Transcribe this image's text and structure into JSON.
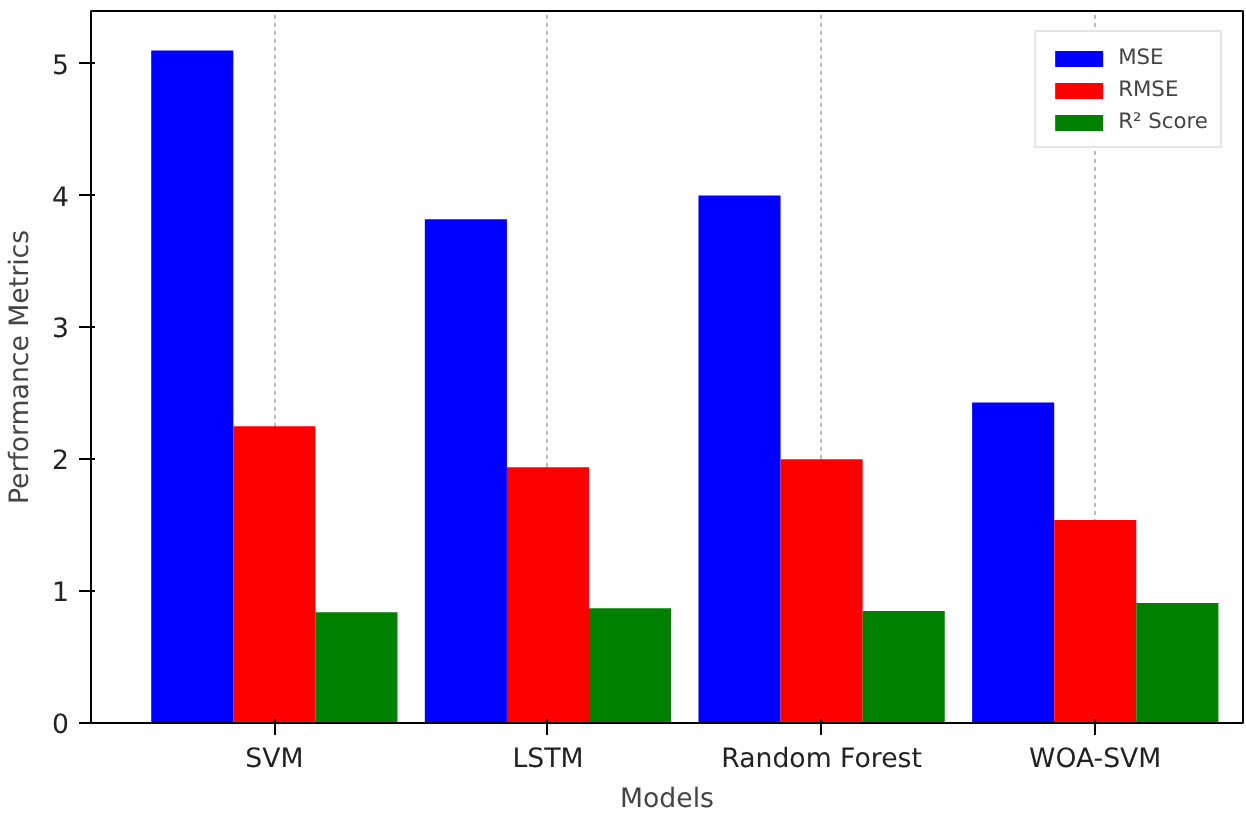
{
  "chart_data": {
    "type": "bar",
    "xlabel": "Models",
    "ylabel": "Performance Metrics",
    "categories": [
      "SVM",
      "LSTM",
      "Random Forest",
      "WOA-SVM"
    ],
    "series": [
      {
        "name": "MSE",
        "color": "#0000ff",
        "values": [
          5.1,
          3.82,
          4.0,
          2.43
        ]
      },
      {
        "name": "RMSE",
        "color": "#ff0000",
        "values": [
          2.25,
          1.94,
          2.0,
          1.54
        ]
      },
      {
        "name": "R² Score",
        "color": "#008000",
        "values": [
          0.84,
          0.87,
          0.85,
          0.91
        ]
      }
    ],
    "ylim": [
      0,
      5.4
    ],
    "yticks": [
      0,
      1,
      2,
      3,
      4,
      5
    ],
    "grid": "x",
    "legend": "top right"
  }
}
